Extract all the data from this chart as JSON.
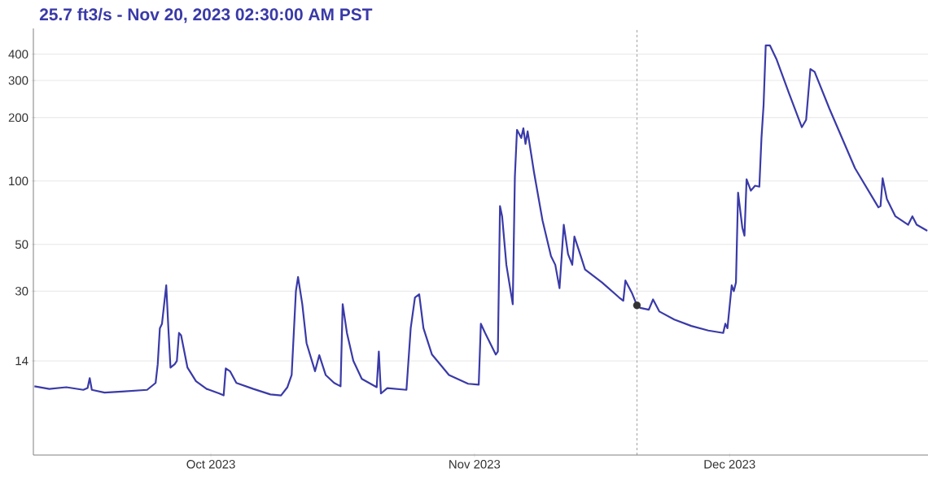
{
  "chart_data": {
    "type": "line",
    "subtitle": "25.7 ft3/s - Nov 20, 2023 02:30:00 AM PST",
    "x": [
      "2023-09-10T06:00",
      "2023-09-12",
      "2023-09-14",
      "2023-09-16",
      "2023-09-16T12:00",
      "2023-09-16T18:00",
      "2023-09-17",
      "2023-09-18T12:00",
      "2023-09-20T12:00",
      "2023-09-23T12:00",
      "2023-09-24T12:00",
      "2023-09-24T18:00",
      "2023-09-25",
      "2023-09-25T06:00",
      "2023-09-25T18:00",
      "2023-09-26",
      "2023-09-26T06:00",
      "2023-09-26T18:00",
      "2023-09-27",
      "2023-09-27T06:00",
      "2023-09-27T12:00",
      "2023-09-28T06:00",
      "2023-09-29T06:00",
      "2023-09-30T12:00",
      "2023-10-02",
      "2023-10-02T12:00",
      "2023-10-02T18:00",
      "2023-10-03T06:00",
      "2023-10-04",
      "2023-10-06",
      "2023-10-08",
      "2023-10-09T06:00",
      "2023-10-10",
      "2023-10-10T12:00",
      "2023-10-11",
      "2023-10-11T06:00",
      "2023-10-11T18:00",
      "2023-10-12T06:00",
      "2023-10-13T06:00",
      "2023-10-13T18:00",
      "2023-10-14T12:00",
      "2023-10-15T12:00",
      "2023-10-16T06:00",
      "2023-10-16T12:00",
      "2023-10-17",
      "2023-10-17T18:00",
      "2023-10-18T18:00",
      "2023-10-20T12:00",
      "2023-10-20T18:00",
      "2023-10-21",
      "2023-10-21T18:00",
      "2023-10-24",
      "2023-10-24T12:00",
      "2023-10-25",
      "2023-10-25T12:00",
      "2023-10-26",
      "2023-10-27",
      "2023-10-29",
      "2023-10-31T06:00",
      "2023-11-01T12:00",
      "2023-11-01T18:00",
      "2023-11-02T06:00",
      "2023-11-03T12:00",
      "2023-11-03T18:00",
      "2023-11-04",
      "2023-11-04T06:00",
      "2023-11-04T18:00",
      "2023-11-05T12:00",
      "2023-11-05T18:00",
      "2023-11-06",
      "2023-11-06T12:00",
      "2023-11-06T18:00",
      "2023-11-07",
      "2023-11-07T06:00",
      "2023-11-08",
      "2023-11-09",
      "2023-11-10",
      "2023-11-10T12:00",
      "2023-11-11",
      "2023-11-11T12:00",
      "2023-11-12",
      "2023-11-12T12:00",
      "2023-11-12T18:00",
      "2023-11-13T12:00",
      "2023-11-14",
      "2023-11-16",
      "2023-11-18",
      "2023-11-18T12:00",
      "2023-11-18T18:00",
      "2023-11-19T12:00",
      "2023-11-20T02:30",
      "2023-11-20T12:00",
      "2023-11-21T12:00",
      "2023-11-22",
      "2023-11-22T18:00",
      "2023-11-24T12:00",
      "2023-11-26T12:00",
      "2023-11-28T12:00",
      "2023-11-30T06:00",
      "2023-11-30T12:00",
      "2023-11-30T18:00",
      "2023-12-01T06:00",
      "2023-12-01T12:00",
      "2023-12-01T18:00",
      "2023-12-02",
      "2023-12-02T12:00",
      "2023-12-02T18:00",
      "2023-12-03",
      "2023-12-03T12:00",
      "2023-12-04",
      "2023-12-04T12:00",
      "2023-12-04T18:00",
      "2023-12-05",
      "2023-12-05T06:00",
      "2023-12-05T18:00",
      "2023-12-06T12:00",
      "2023-12-08",
      "2023-12-09T12:00",
      "2023-12-10",
      "2023-12-10T12:00",
      "2023-12-11",
      "2023-12-12T18:00",
      "2023-12-15T18:00",
      "2023-12-18T12:00",
      "2023-12-18T18:00",
      "2023-12-19",
      "2023-12-19T12:00",
      "2023-12-20T12:00",
      "2023-12-22",
      "2023-12-22T12:00",
      "2023-12-23",
      "2023-12-24T06:00"
    ],
    "series": [
      {
        "color": "#3a3aa8",
        "values": [
          10.6,
          10.3,
          10.5,
          10.2,
          10.4,
          11.6,
          10.2,
          9.9,
          10.0,
          10.2,
          11,
          13.5,
          20,
          21,
          32,
          20,
          13,
          13.5,
          14,
          19,
          18.5,
          13,
          11.2,
          10.3,
          9.8,
          9.6,
          12.9,
          12.5,
          11,
          10.3,
          9.7,
          9.6,
          10.5,
          12,
          30,
          35,
          26,
          17,
          12.5,
          14.9,
          12,
          11,
          10.6,
          26,
          19,
          14,
          11.5,
          10.5,
          15.5,
          9.8,
          10.4,
          10.2,
          20,
          28,
          29,
          20,
          15,
          12,
          10.9,
          10.8,
          21,
          19,
          15,
          15.5,
          76,
          68,
          40,
          26,
          105,
          175,
          160,
          178,
          150,
          172,
          110,
          65,
          44,
          40,
          31,
          62,
          45,
          40,
          54.5,
          44,
          38,
          33,
          28,
          27,
          33.7,
          29.5,
          25.7,
          25,
          24.5,
          27.4,
          24,
          22,
          20.5,
          19.5,
          19,
          21,
          20,
          32,
          30,
          33,
          88,
          60,
          55,
          102,
          90,
          95,
          94,
          160,
          230,
          440,
          440,
          380,
          260,
          180,
          195,
          340,
          330,
          220,
          115,
          75,
          76,
          103,
          82,
          68,
          62,
          68,
          62,
          58
        ]
      },
      {
        "type": "scatter",
        "color": "#333333",
        "x": [
          "2023-11-20T02:30"
        ],
        "values": [
          25.7
        ]
      }
    ],
    "log": true,
    "grid": "y",
    "xlim": [
      "2023-09-10T03:00",
      "2023-12-24T08:00"
    ],
    "xticks": [
      {
        "value": "2023-10-01",
        "label": "Oct 2023"
      },
      {
        "value": "2023-11-01",
        "label": "Nov 2023"
      },
      {
        "value": "2023-12-01",
        "label": "Dec 2023"
      }
    ],
    "ylim": [
      5,
      530
    ],
    "yticks": [
      14,
      30,
      50,
      100,
      200,
      300,
      400
    ],
    "ref_lines": [
      {
        "axis": "x",
        "value": "2023-11-20T02:30",
        "color": "#808080",
        "line_style": "dashed"
      }
    ]
  }
}
